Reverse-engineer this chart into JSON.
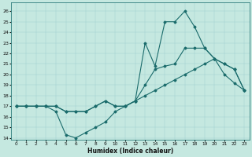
{
  "xlabel": "Humidex (Indice chaleur)",
  "xlim": [
    -0.5,
    23.5
  ],
  "ylim": [
    13.8,
    26.8
  ],
  "yticks": [
    14,
    15,
    16,
    17,
    18,
    19,
    20,
    21,
    22,
    23,
    24,
    25,
    26
  ],
  "xticks": [
    0,
    1,
    2,
    3,
    4,
    5,
    6,
    7,
    8,
    9,
    10,
    11,
    12,
    13,
    14,
    15,
    16,
    17,
    18,
    19,
    20,
    21,
    22,
    23
  ],
  "background_color": "#c5e8e0",
  "line_color": "#1a6b6b",
  "line1_y": [
    17,
    17,
    17,
    17,
    16.5,
    14.3,
    14.0,
    14.5,
    15.0,
    15.5,
    16.5,
    17.0,
    17.5,
    18.0,
    18.5,
    19.0,
    19.5,
    20.0,
    20.5,
    21.0,
    21.5,
    20.0,
    19.2,
    18.5
  ],
  "line2_y": [
    17,
    17,
    17,
    17,
    17,
    16.5,
    16.5,
    16.5,
    17.0,
    17.5,
    17.0,
    17.0,
    17.5,
    19.0,
    20.5,
    20.8,
    21.0,
    22.5,
    22.5,
    22.5,
    21.5,
    21.0,
    20.5,
    18.5
  ],
  "line3_y": [
    17,
    17,
    17,
    17,
    17,
    16.5,
    16.5,
    16.5,
    17.0,
    17.5,
    17.0,
    17.0,
    17.5,
    23.0,
    20.8,
    25.0,
    25.0,
    26.0,
    24.5,
    22.5,
    21.5,
    21.0,
    20.5,
    18.5
  ]
}
